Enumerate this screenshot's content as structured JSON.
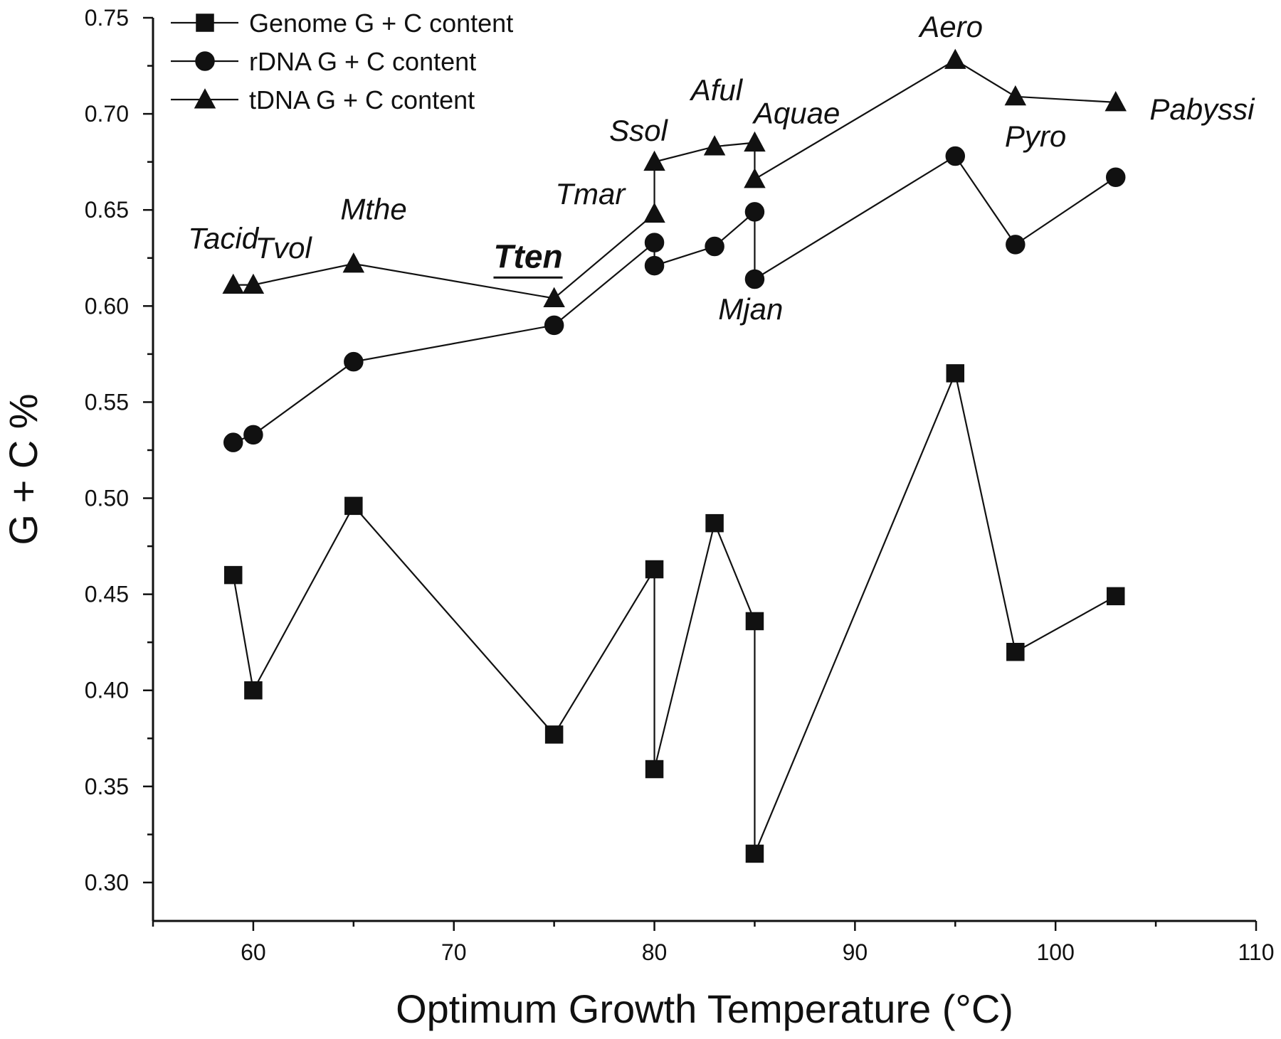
{
  "chart_data": {
    "type": "line",
    "title": "",
    "xlabel": "Optimum Growth Temperature (°C)",
    "ylabel": "G + C %",
    "xlim": [
      55,
      110
    ],
    "ylim": [
      0.28,
      0.75
    ],
    "x_ticks": [
      60,
      70,
      80,
      90,
      100,
      110
    ],
    "y_ticks": [
      0.3,
      0.35,
      0.4,
      0.45,
      0.5,
      0.55,
      0.6,
      0.65,
      0.7,
      0.75
    ],
    "x_tick_labels": [
      "60",
      "70",
      "80",
      "90",
      "100",
      "110"
    ],
    "y_tick_labels": [
      "0.30",
      "0.35",
      "0.40",
      "0.45",
      "0.50",
      "0.55",
      "0.60",
      "0.65",
      "0.70",
      "0.75"
    ],
    "legend_position": "top-left",
    "grid": false,
    "series": [
      {
        "name": "Genome G + C content",
        "marker": "square",
        "points": [
          {
            "x": 59,
            "y": 0.46
          },
          {
            "x": 60,
            "y": 0.4
          },
          {
            "x": 65,
            "y": 0.496
          },
          {
            "x": 75,
            "y": 0.377
          },
          {
            "x": 80,
            "y": 0.463
          },
          {
            "x": 80,
            "y": 0.359
          },
          {
            "x": 83,
            "y": 0.487
          },
          {
            "x": 85,
            "y": 0.436
          },
          {
            "x": 85,
            "y": 0.315
          },
          {
            "x": 95,
            "y": 0.565
          },
          {
            "x": 98,
            "y": 0.42
          },
          {
            "x": 103,
            "y": 0.449
          }
        ]
      },
      {
        "name": "rDNA G + C content",
        "marker": "circle",
        "points": [
          {
            "x": 59,
            "y": 0.529
          },
          {
            "x": 60,
            "y": 0.533
          },
          {
            "x": 65,
            "y": 0.571
          },
          {
            "x": 75,
            "y": 0.59
          },
          {
            "x": 80,
            "y": 0.633
          },
          {
            "x": 80,
            "y": 0.621
          },
          {
            "x": 83,
            "y": 0.631
          },
          {
            "x": 85,
            "y": 0.649
          },
          {
            "x": 85,
            "y": 0.614
          },
          {
            "x": 95,
            "y": 0.678
          },
          {
            "x": 98,
            "y": 0.632
          },
          {
            "x": 103,
            "y": 0.667
          }
        ]
      },
      {
        "name": "tDNA G + C content",
        "marker": "triangle",
        "points": [
          {
            "x": 59,
            "y": 0.611
          },
          {
            "x": 60,
            "y": 0.611
          },
          {
            "x": 65,
            "y": 0.622
          },
          {
            "x": 75,
            "y": 0.604
          },
          {
            "x": 80,
            "y": 0.648
          },
          {
            "x": 80,
            "y": 0.675
          },
          {
            "x": 83,
            "y": 0.683
          },
          {
            "x": 85,
            "y": 0.685
          },
          {
            "x": 85,
            "y": 0.666
          },
          {
            "x": 95,
            "y": 0.728
          },
          {
            "x": 98,
            "y": 0.709
          },
          {
            "x": 103,
            "y": 0.706
          }
        ]
      }
    ],
    "annotations": [
      {
        "text": "Tacid",
        "x": 58.5,
        "y": 0.63,
        "style": "italic"
      },
      {
        "text": "Tvol",
        "x": 61.5,
        "y": 0.625,
        "style": "italic"
      },
      {
        "text": "Mthe",
        "x": 66.0,
        "y": 0.645,
        "style": "italic"
      },
      {
        "text": "Tten",
        "x": 73.7,
        "y": 0.62,
        "style": "bold-underline"
      },
      {
        "text": "Tmar",
        "x": 76.8,
        "y": 0.653,
        "style": "italic"
      },
      {
        "text": "Ssol",
        "x": 79.2,
        "y": 0.686,
        "style": "italic"
      },
      {
        "text": "Aful",
        "x": 83.1,
        "y": 0.707,
        "style": "italic"
      },
      {
        "text": "Aquae",
        "x": 87.1,
        "y": 0.695,
        "style": "italic"
      },
      {
        "text": "Mjan",
        "x": 84.8,
        "y": 0.593,
        "style": "italic"
      },
      {
        "text": "Aero",
        "x": 94.8,
        "y": 0.74,
        "style": "italic"
      },
      {
        "text": "Pyro",
        "x": 99.0,
        "y": 0.683,
        "style": "italic"
      },
      {
        "text": "Pabyssi",
        "x": 107.3,
        "y": 0.697,
        "style": "italic"
      }
    ]
  }
}
